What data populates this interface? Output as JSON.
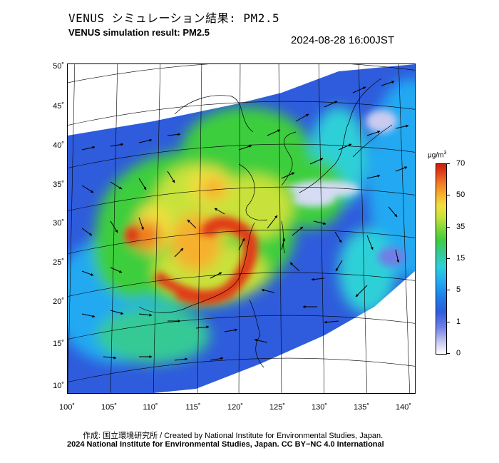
{
  "header": {
    "title_jp": "VENUS シミュレーション結果: PM2.5",
    "title_en": "VENUS simulation result: PM2.5",
    "timestamp": "2024-08-28 16:00JST"
  },
  "map": {
    "lat_labels": [
      "50˚",
      "45˚",
      "40˚",
      "35˚",
      "30˚",
      "25˚",
      "20˚",
      "15˚",
      "10˚"
    ],
    "lon_labels": [
      "100˚",
      "105˚",
      "110˚",
      "115˚",
      "120˚",
      "125˚",
      "130˚",
      "135˚",
      "140˚"
    ],
    "lon_range": [
      100,
      141
    ],
    "lat_range": [
      9,
      51
    ],
    "features": [
      {
        "name": "pollution-hotspot-south-china",
        "lon": 118,
        "lat": 26,
        "level": "70"
      },
      {
        "name": "typhoon-circulation",
        "lon": 131,
        "lat": 26
      }
    ]
  },
  "colorbar": {
    "unit": "μg/m",
    "unit_sup": "3",
    "ticks": [
      "70",
      "50",
      "35",
      "15",
      "5",
      "1",
      "0"
    ],
    "colors": [
      "#c81e10",
      "#f17a24",
      "#f0e040",
      "#3ece3e",
      "#22a9f2",
      "#2f5cdc",
      "#ffffff"
    ]
  },
  "footer": {
    "credit_jp_en": "作成: 国立環境研究所 / Created by National Institute for Environmental Studies, Japan.",
    "copyright": "2024 National Institute for Environmental Studies, Japan. CC BY−NC 4.0 International"
  }
}
